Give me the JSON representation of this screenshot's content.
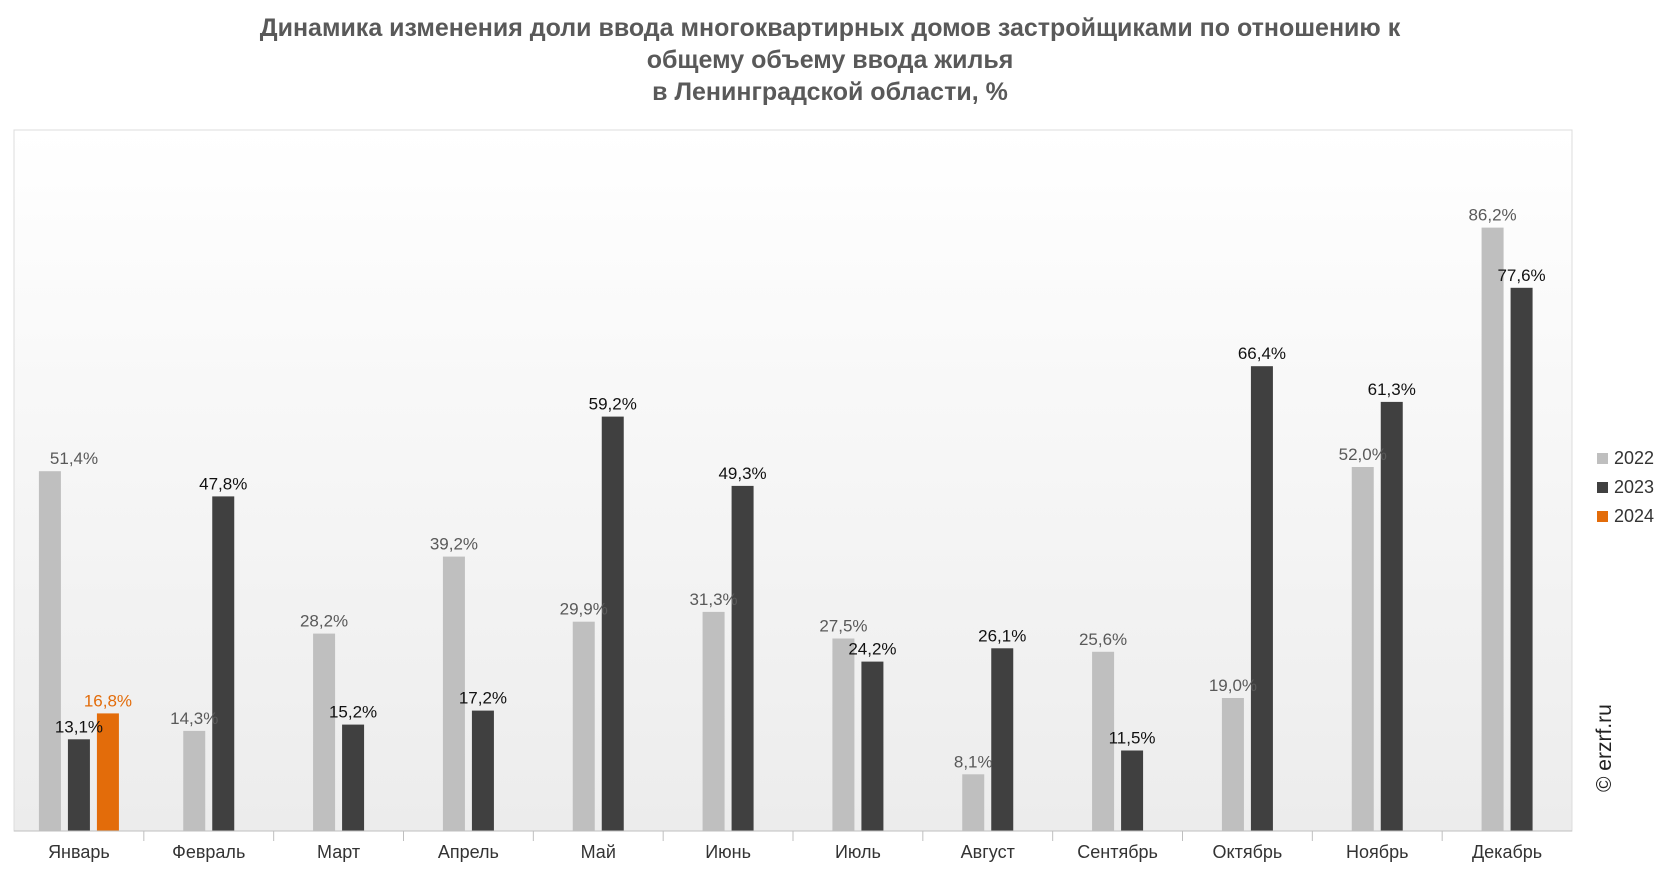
{
  "chart_data": {
    "type": "bar",
    "title": [
      "Динамика изменения доли ввода многоквартирных домов застройщиками по отношению к",
      "общему объему ввода жилья",
      "в Ленинградской области, %"
    ],
    "categories": [
      "Январь",
      "Февраль",
      "Март",
      "Апрель",
      "Май",
      "Июнь",
      "Июль",
      "Август",
      "Сентябрь",
      "Октябрь",
      "Ноябрь",
      "Декабрь"
    ],
    "series": [
      {
        "name": "2022",
        "color": "#bfbfbf",
        "label_color": "#595959",
        "values": [
          51.4,
          14.3,
          28.2,
          39.2,
          29.9,
          31.3,
          27.5,
          8.1,
          25.6,
          19.0,
          52.0,
          86.2
        ],
        "labels": [
          "51,4%",
          "14,3%",
          "28,2%",
          "39,2%",
          "29,9%",
          "31,3%",
          "27,5%",
          "8,1%",
          "25,6%",
          "19,0%",
          "52,0%",
          "86,2%"
        ]
      },
      {
        "name": "2023",
        "color": "#404040",
        "label_color": "#111111",
        "values": [
          13.1,
          47.8,
          15.2,
          17.2,
          59.2,
          49.3,
          24.2,
          26.1,
          11.5,
          66.4,
          61.3,
          77.6
        ],
        "labels": [
          "13,1%",
          "47,8%",
          "15,2%",
          "17,2%",
          "59,2%",
          "49,3%",
          "24,2%",
          "26,1%",
          "11,5%",
          "66,4%",
          "61,3%",
          "77,6%"
        ]
      },
      {
        "name": "2024",
        "color": "#e36c0a",
        "label_color": "#e36c0a",
        "values": [
          16.8,
          null,
          null,
          null,
          null,
          null,
          null,
          null,
          null,
          null,
          null,
          null
        ],
        "labels": [
          "16,8%",
          "",
          "",
          "",
          "",
          "",
          "",
          "",
          "",
          "",
          "",
          ""
        ]
      }
    ],
    "ylim": [
      0,
      100
    ],
    "legend_position": "right",
    "grid": false,
    "credit": "© erzrf.ru"
  }
}
